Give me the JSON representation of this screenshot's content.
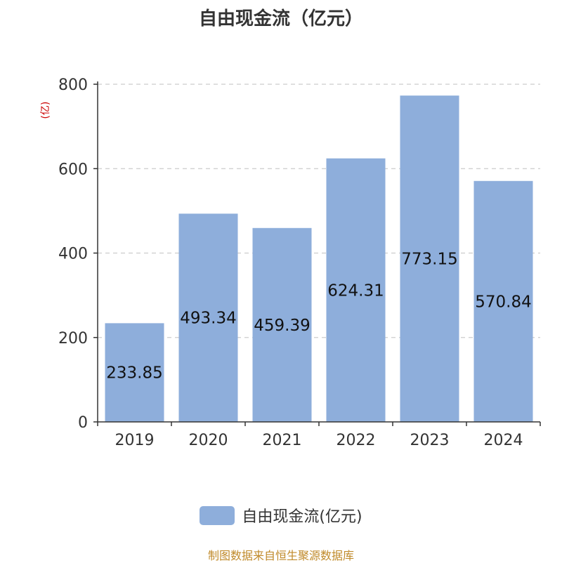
{
  "title": "自由现金流（亿元）",
  "y_unit": "(亿)",
  "source": "制图数据来自恒生聚源数据库",
  "colors": {
    "bar": "#8eaedb",
    "axis": "#333333",
    "grid": "#cccccc",
    "unit": "#cc0000",
    "source": "#c08a2a"
  },
  "chart_data": {
    "type": "bar",
    "categories": [
      "2019",
      "2020",
      "2021",
      "2022",
      "2023",
      "2024"
    ],
    "series": [
      {
        "name": "自由现金流(亿元)",
        "values": [
          233.85,
          493.34,
          459.39,
          624.31,
          773.15,
          570.84
        ]
      }
    ],
    "data_labels": [
      "233.85",
      "493.34",
      "459.39",
      "624.31",
      "773.15",
      "570.84"
    ],
    "ylim": [
      0,
      800
    ],
    "yticks": [
      0,
      200,
      400,
      600,
      800
    ],
    "grid": true,
    "legend": "bottom"
  }
}
